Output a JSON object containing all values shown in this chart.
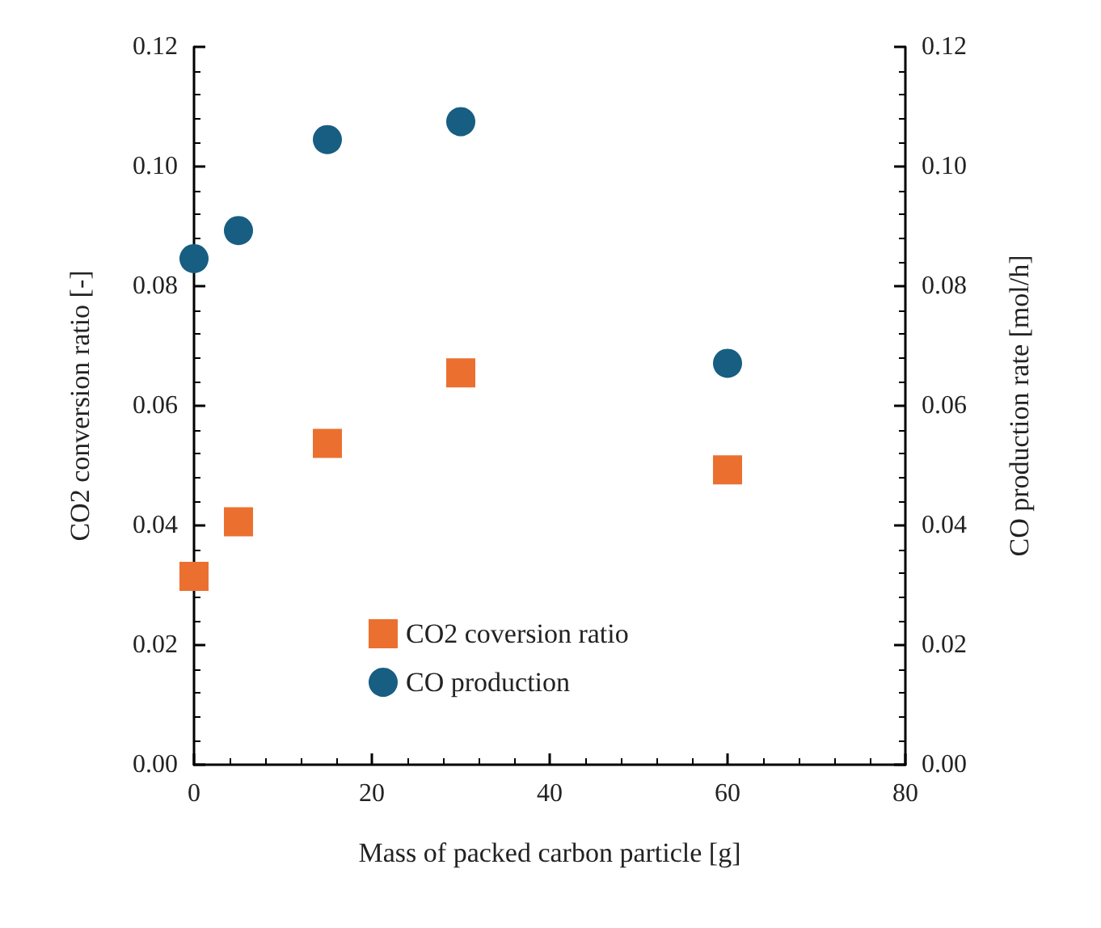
{
  "chart_data": {
    "type": "scatter",
    "xlabel": "Mass of packed carbon particle [g]",
    "ylabel": "CO2 conversion ratio [-]",
    "y2label": "CO production rate [mol/h]",
    "x": [
      0,
      5,
      15,
      30,
      60
    ],
    "series": [
      {
        "name": "CO2 coversion ratio",
        "color": "#eb7030",
        "marker": "square",
        "values": [
          0.0315,
          0.0406,
          0.0537,
          0.0655,
          0.0493
        ]
      },
      {
        "name": "CO production",
        "color": "#175e82",
        "marker": "circle",
        "axis": "y2",
        "values": [
          0.0846,
          0.0893,
          0.1045,
          0.1075,
          0.0671
        ]
      }
    ],
    "xlim": [
      0,
      80
    ],
    "xticks": [
      0,
      20,
      40,
      60,
      80
    ],
    "ylim": [
      0,
      0.12
    ],
    "yticks": [
      {
        "value": 0,
        "label": "0.00"
      },
      {
        "value": 0.02,
        "label": "0.02"
      },
      {
        "value": 0.04,
        "label": "0.04"
      },
      {
        "value": 0.06,
        "label": "0.06"
      },
      {
        "value": 0.08,
        "label": "0.08"
      },
      {
        "value": 0.1,
        "label": "0.10"
      },
      {
        "value": 0.12,
        "label": "0.12"
      }
    ],
    "y2lim": [
      0,
      0.12
    ],
    "y2ticks": [
      {
        "value": 0,
        "label": "0.00"
      },
      {
        "value": 0.02,
        "label": "0.02"
      },
      {
        "value": 0.04,
        "label": "0.04"
      },
      {
        "value": 0.06,
        "label": "0.06"
      },
      {
        "value": 0.08,
        "label": "0.08"
      },
      {
        "value": 0.1,
        "label": "0.10"
      },
      {
        "value": 0.12,
        "label": "0.12"
      }
    ],
    "grid": false,
    "legend": "bottom"
  }
}
